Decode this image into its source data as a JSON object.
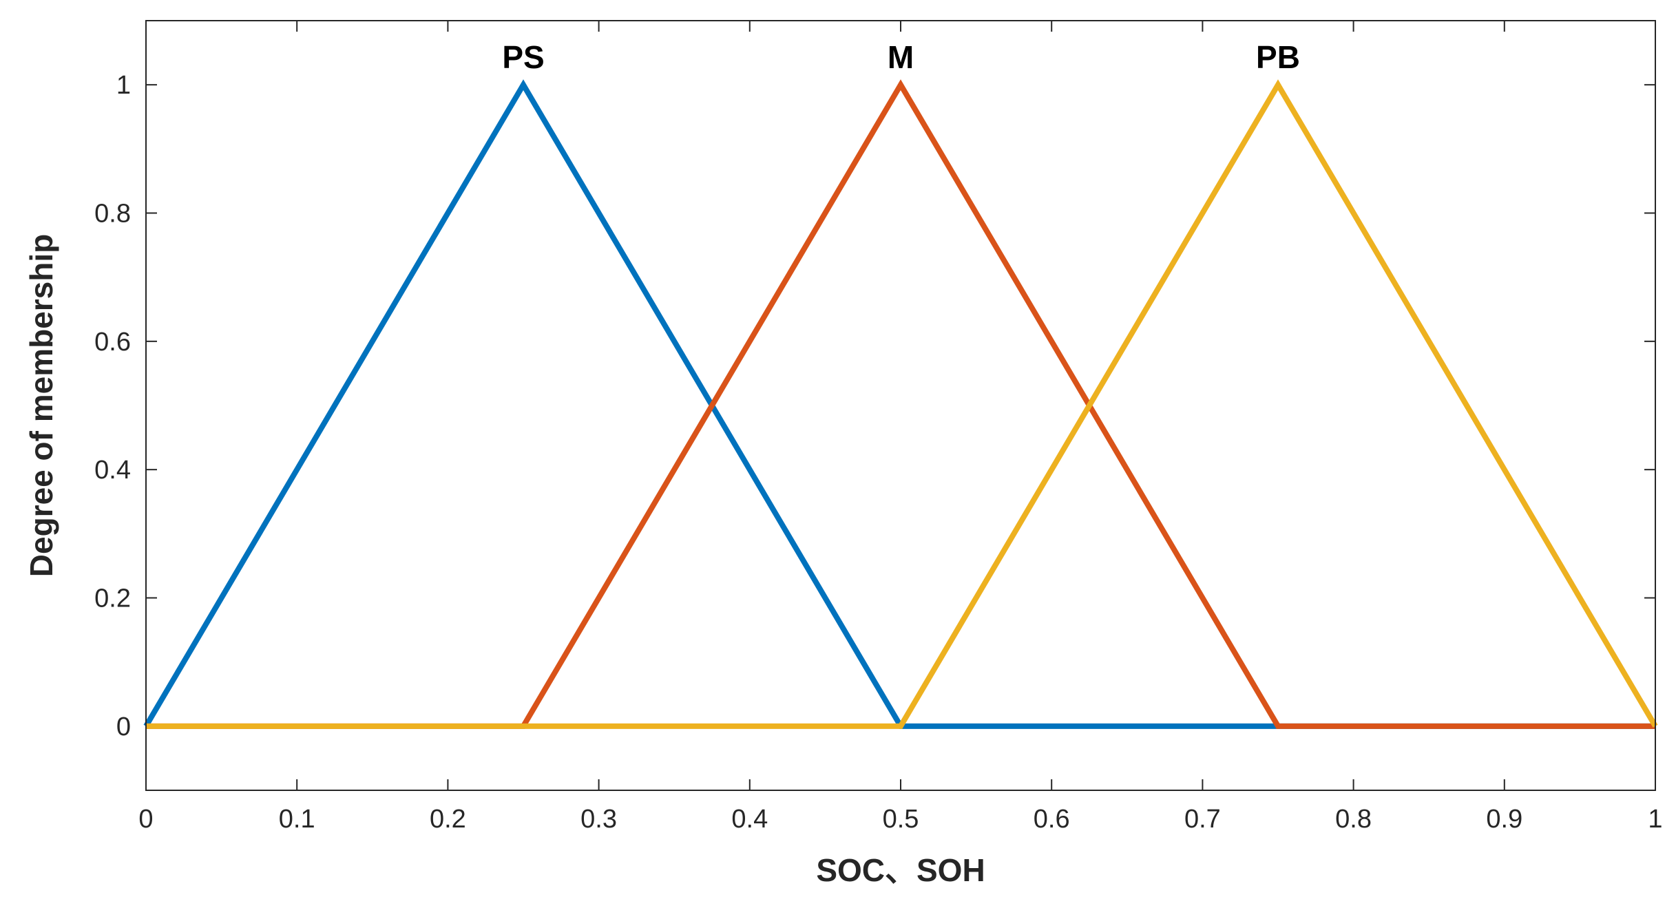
{
  "chart_data": {
    "type": "line",
    "title": "",
    "xlabel": "SOC、SOH",
    "ylabel": "Degree of membership",
    "xlim": [
      0,
      1
    ],
    "ylim": [
      -0.1,
      1.1
    ],
    "grid": false,
    "x_ticks": [
      0,
      0.1,
      0.2,
      0.3,
      0.4,
      0.5,
      0.6,
      0.7,
      0.8,
      0.9,
      1
    ],
    "x_tick_labels": [
      "0",
      "0.1",
      "0.2",
      "0.3",
      "0.4",
      "0.5",
      "0.6",
      "0.7",
      "0.8",
      "0.9",
      "1"
    ],
    "y_ticks": [
      0,
      0.2,
      0.4,
      0.6,
      0.8,
      1
    ],
    "y_tick_labels": [
      "0",
      "0.2",
      "0.4",
      "0.6",
      "0.8",
      "1"
    ],
    "series": [
      {
        "name": "PS",
        "color": "#0072BD",
        "x": [
          0,
          0.25,
          0.5,
          1
        ],
        "y": [
          0,
          1,
          0,
          0
        ]
      },
      {
        "name": "M",
        "color": "#D95319",
        "x": [
          0,
          0.25,
          0.5,
          0.75,
          1
        ],
        "y": [
          0,
          0,
          1,
          0,
          0
        ]
      },
      {
        "name": "PB",
        "color": "#EDB120",
        "x": [
          0,
          0.5,
          0.75,
          1
        ],
        "y": [
          0,
          0,
          1,
          0
        ]
      }
    ],
    "annotations": [
      {
        "text": "PS",
        "x": 0.25,
        "y": 1
      },
      {
        "text": "M",
        "x": 0.5,
        "y": 1
      },
      {
        "text": "PB",
        "x": 0.75,
        "y": 1
      }
    ]
  }
}
